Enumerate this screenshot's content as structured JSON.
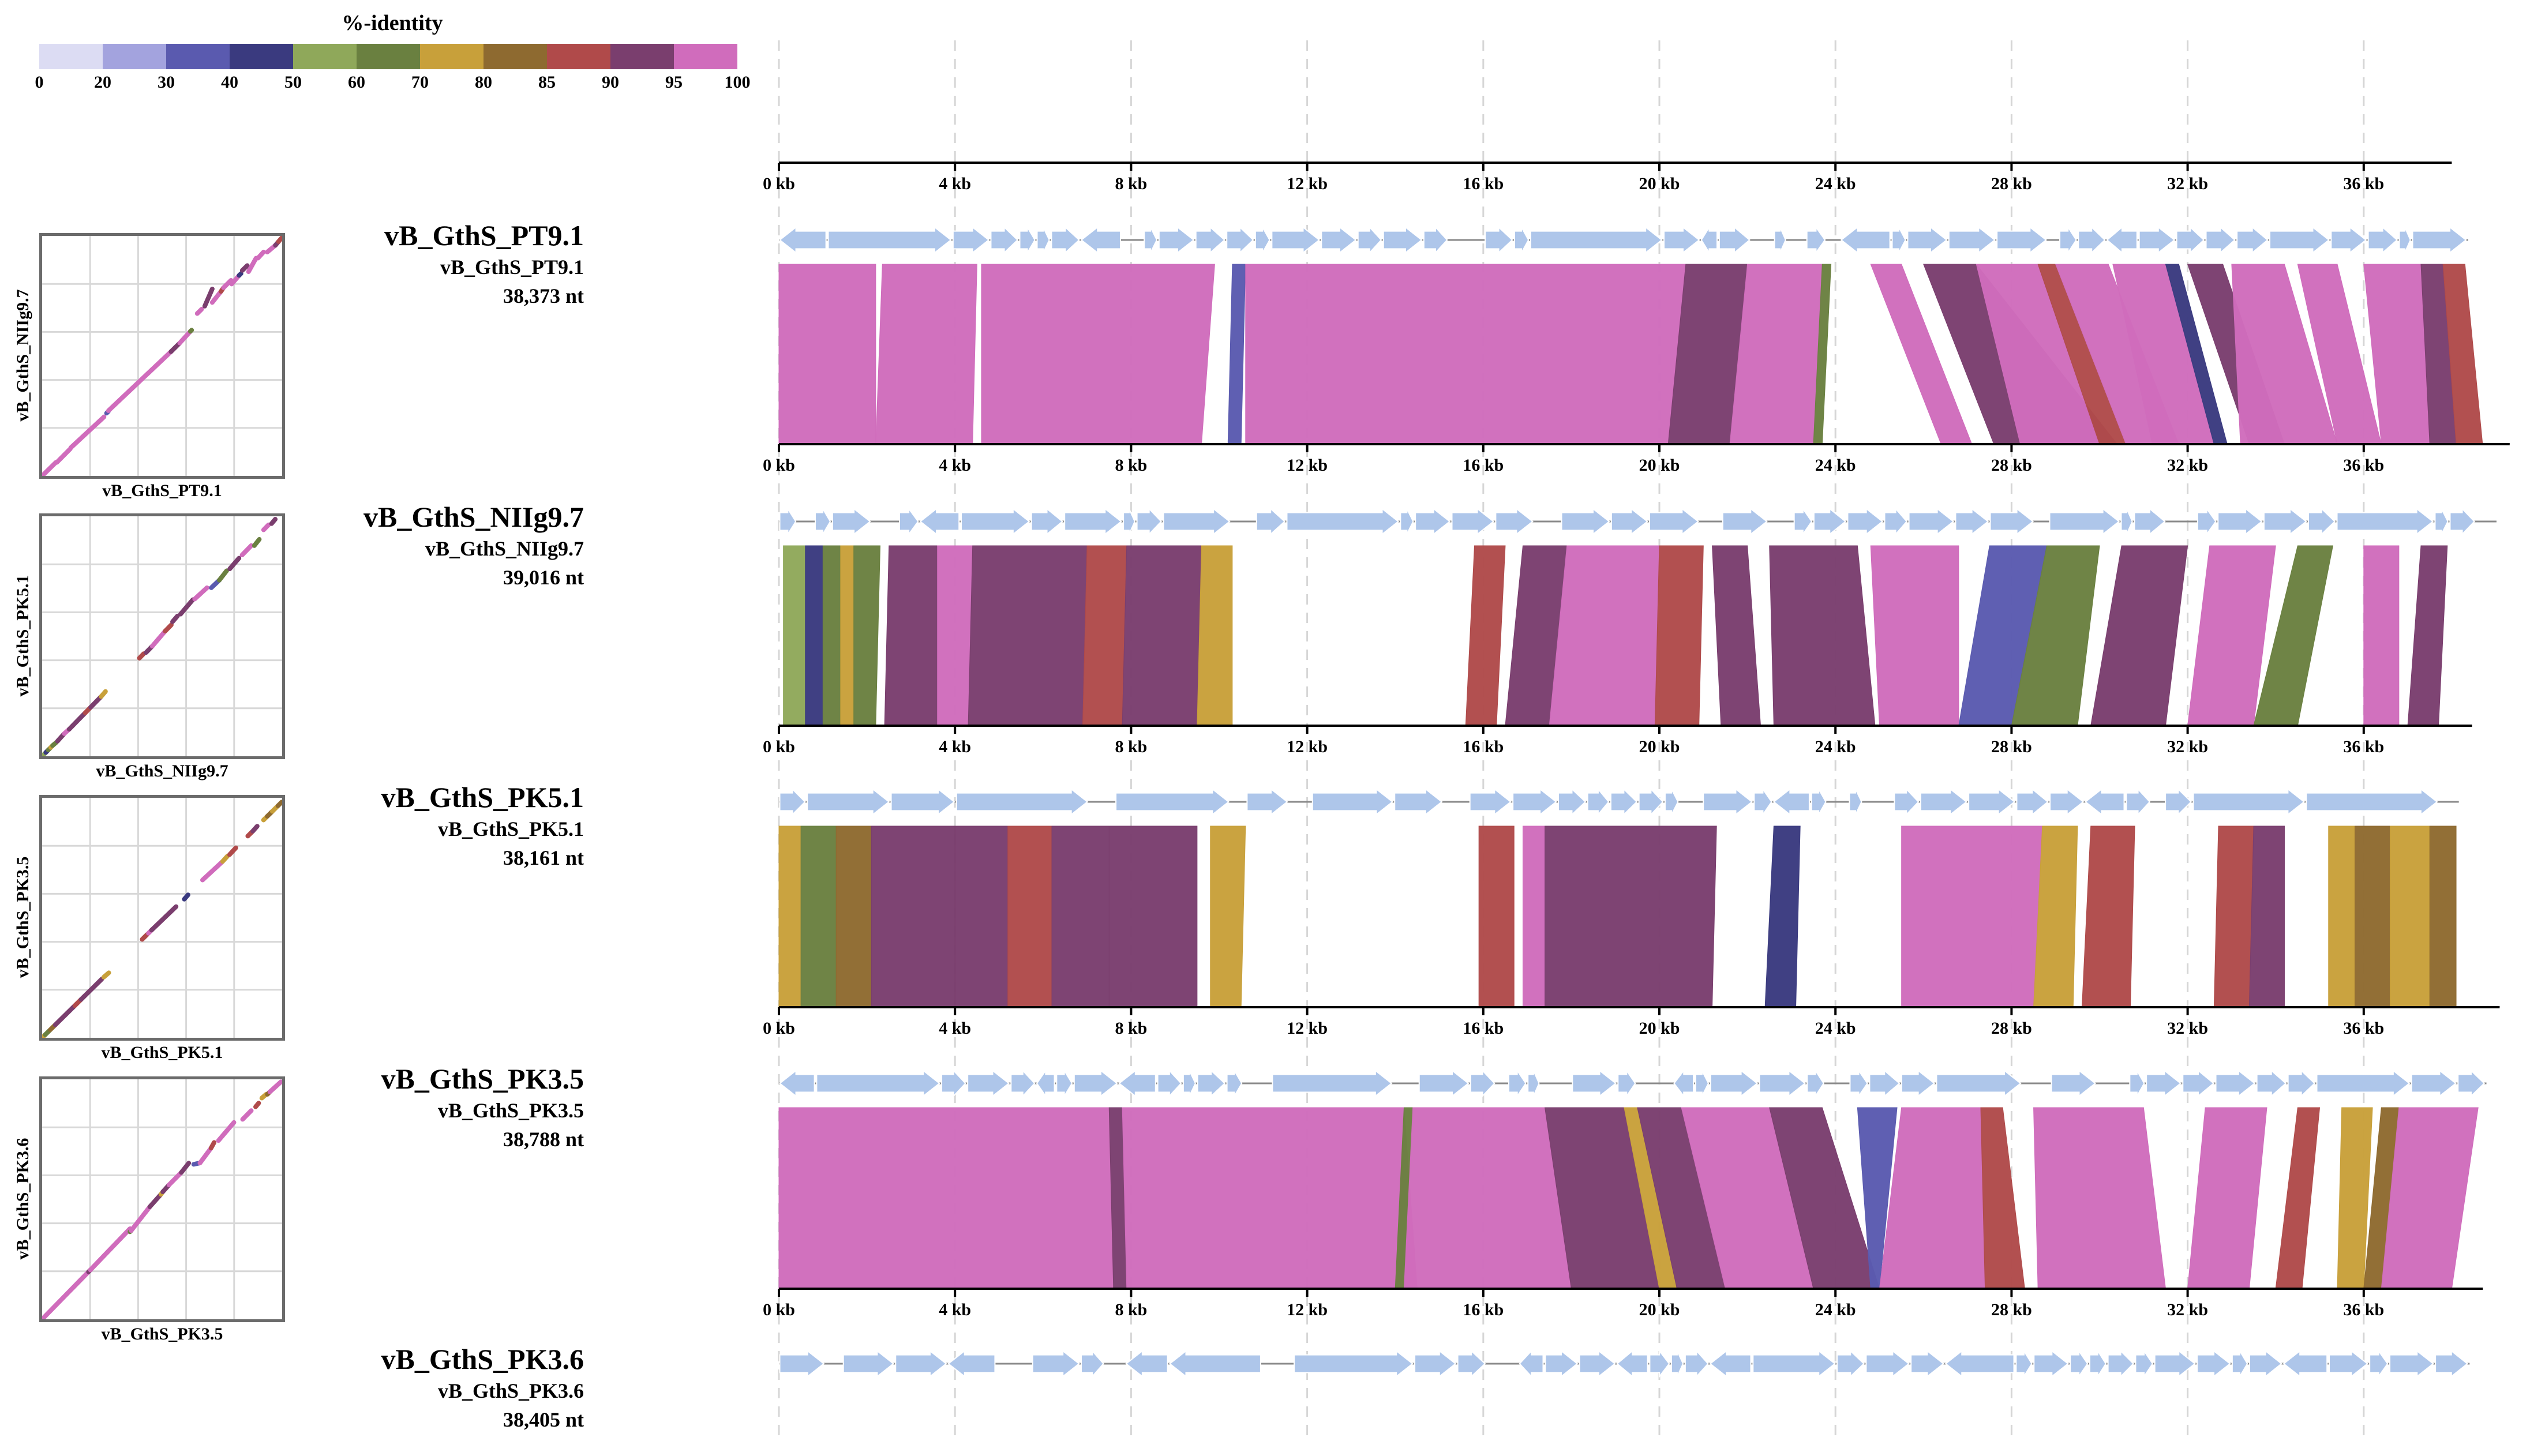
{
  "legend": {
    "title": "%-identity",
    "ticks": [
      "0",
      "20",
      "30",
      "40",
      "50",
      "60",
      "70",
      "80",
      "85",
      "90",
      "95",
      "100"
    ],
    "colors": [
      "#dcdcf3",
      "#a3a3de",
      "#5a5aaf",
      "#3a3a7f",
      "#8fa85a",
      "#6a8040",
      "#c8a03a",
      "#8e6a30",
      "#b04a4a",
      "#7a3e6e",
      "#d06cbc"
    ]
  },
  "axis": {
    "labels": [
      "0 kb",
      "4 kb",
      "8 kb",
      "12 kb",
      "16 kb",
      "20 kb",
      "24 kb",
      "28 kb",
      "32 kb",
      "36 kb"
    ],
    "max_kb": 38.373
  },
  "genomes": [
    {
      "name": "vB_GthS_PT9.1",
      "sub": "vB_GthS_PT9.1",
      "length": "38,373 nt",
      "length_kb": 38.373
    },
    {
      "name": "vB_GthS_NIIg9.7",
      "sub": "vB_GthS_NIIg9.7",
      "length": "39,016 nt",
      "length_kb": 39.016
    },
    {
      "name": "vB_GthS_PK5.1",
      "sub": "vB_GthS_PK5.1",
      "length": "38,161 nt",
      "length_kb": 38.161
    },
    {
      "name": "vB_GthS_PK3.5",
      "sub": "vB_GthS_PK3.5",
      "length": "38,788 nt",
      "length_kb": 38.788
    },
    {
      "name": "vB_GthS_PK3.6",
      "sub": "vB_GthS_PK3.6",
      "length": "38,405 nt",
      "length_kb": 38.405
    }
  ],
  "dotplots": [
    {
      "xlabel": "vB_GthS_PT9.1",
      "ylabel": "vB_GthS_NIIg9.7"
    },
    {
      "xlabel": "vB_GthS_NIIg9.7",
      "ylabel": "vB_GthS_PK5.1"
    },
    {
      "xlabel": "vB_GthS_PK5.1",
      "ylabel": "vB_GthS_PK3.5"
    },
    {
      "xlabel": "vB_GthS_PK3.5",
      "ylabel": "vB_GthS_PK3.6"
    }
  ],
  "gene_color": "#aec6ea",
  "comparisons": [
    [
      {
        "t": [
          0,
          2.2
        ],
        "b": [
          0,
          2.2
        ],
        "c": 10
      },
      {
        "t": [
          2.35,
          4.5
        ],
        "b": [
          2.2,
          4.4
        ],
        "c": 10
      },
      {
        "t": [
          4.6,
          9.9
        ],
        "b": [
          4.6,
          9.6
        ],
        "c": 10
      },
      {
        "t": [
          10.3,
          10.6
        ],
        "b": [
          10.2,
          10.5
        ],
        "c": 2
      },
      {
        "t": [
          10.6,
          20.6
        ],
        "b": [
          10.6,
          20.2
        ],
        "c": 10
      },
      {
        "t": [
          20.6,
          22.0
        ],
        "b": [
          20.2,
          21.6
        ],
        "c": 9
      },
      {
        "t": [
          22.0,
          23.7
        ],
        "b": [
          21.6,
          23.5
        ],
        "c": 10
      },
      {
        "t": [
          23.7,
          23.9
        ],
        "b": [
          23.5,
          23.7
        ],
        "c": 5
      },
      {
        "t": [
          24.8,
          25.5
        ],
        "b": [
          26.4,
          27.1
        ],
        "c": 10
      },
      {
        "t": [
          26.0,
          27.2
        ],
        "b": [
          27.6,
          30.4
        ],
        "c": 9
      },
      {
        "t": [
          27.2,
          28.6
        ],
        "b": [
          28.2,
          30.0
        ],
        "c": 10
      },
      {
        "t": [
          28.6,
          29.0
        ],
        "b": [
          30.0,
          30.6
        ],
        "c": 8
      },
      {
        "t": [
          29.0,
          30.2
        ],
        "b": [
          30.6,
          31.8
        ],
        "c": 10
      },
      {
        "t": [
          30.3,
          31.5
        ],
        "b": [
          31.2,
          32.6
        ],
        "c": 10
      },
      {
        "t": [
          31.5,
          31.8
        ],
        "b": [
          32.6,
          32.9
        ],
        "c": 3
      },
      {
        "t": [
          32.0,
          32.8
        ],
        "b": [
          33.4,
          34.2
        ],
        "c": 9
      },
      {
        "t": [
          33.0,
          34.2
        ],
        "b": [
          33.2,
          35.4
        ],
        "c": 10
      },
      {
        "t": [
          34.5,
          35.4
        ],
        "b": [
          35.4,
          36.4
        ],
        "c": 10
      },
      {
        "t": [
          36.0,
          37.3
        ],
        "b": [
          36.4,
          37.5
        ],
        "c": 10
      },
      {
        "t": [
          37.3,
          37.8
        ],
        "b": [
          37.5,
          38.1
        ],
        "c": 9
      },
      {
        "t": [
          37.8,
          38.3
        ],
        "b": [
          38.1,
          38.7
        ],
        "c": 8
      }
    ],
    [
      {
        "t": [
          0.1,
          0.6
        ],
        "b": [
          0.1,
          0.6
        ],
        "c": 4
      },
      {
        "t": [
          0.6,
          1.0
        ],
        "b": [
          0.6,
          1.0
        ],
        "c": 3
      },
      {
        "t": [
          1.0,
          1.4
        ],
        "b": [
          1.0,
          1.4
        ],
        "c": 5
      },
      {
        "t": [
          1.4,
          1.7
        ],
        "b": [
          1.4,
          1.7
        ],
        "c": 6
      },
      {
        "t": [
          1.7,
          2.3
        ],
        "b": [
          1.7,
          2.2
        ],
        "c": 5
      },
      {
        "t": [
          2.5,
          3.6
        ],
        "b": [
          2.4,
          3.6
        ],
        "c": 9
      },
      {
        "t": [
          3.6,
          4.4
        ],
        "b": [
          3.6,
          4.3
        ],
        "c": 10
      },
      {
        "t": [
          4.4,
          7.0
        ],
        "b": [
          4.3,
          6.9
        ],
        "c": 9
      },
      {
        "t": [
          7.0,
          7.9
        ],
        "b": [
          6.9,
          7.8
        ],
        "c": 8
      },
      {
        "t": [
          7.9,
          9.6
        ],
        "b": [
          7.8,
          9.5
        ],
        "c": 9
      },
      {
        "t": [
          9.6,
          10.3
        ],
        "b": [
          9.5,
          10.3
        ],
        "c": 6
      },
      {
        "t": [
          15.8,
          16.5
        ],
        "b": [
          15.6,
          16.3
        ],
        "c": 8
      },
      {
        "t": [
          16.9,
          17.9
        ],
        "b": [
          16.5,
          17.5
        ],
        "c": 9
      },
      {
        "t": [
          17.9,
          20.0
        ],
        "b": [
          17.5,
          19.9
        ],
        "c": 10
      },
      {
        "t": [
          20.0,
          21.0
        ],
        "b": [
          19.9,
          20.9
        ],
        "c": 8
      },
      {
        "t": [
          21.2,
          22.0
        ],
        "b": [
          21.4,
          22.3
        ],
        "c": 9
      },
      {
        "t": [
          22.5,
          24.5
        ],
        "b": [
          22.6,
          24.9
        ],
        "c": 9
      },
      {
        "t": [
          24.8,
          26.8
        ],
        "b": [
          25.0,
          26.8
        ],
        "c": 10
      },
      {
        "t": [
          27.5,
          28.8
        ],
        "b": [
          26.8,
          28.0
        ],
        "c": 2
      },
      {
        "t": [
          28.8,
          30.0
        ],
        "b": [
          28.0,
          29.5
        ],
        "c": 5
      },
      {
        "t": [
          30.5,
          32.0
        ],
        "b": [
          29.8,
          31.5
        ],
        "c": 9
      },
      {
        "t": [
          32.5,
          34.0
        ],
        "b": [
          32.0,
          33.5
        ],
        "c": 10
      },
      {
        "t": [
          34.5,
          35.3
        ],
        "b": [
          33.5,
          34.5
        ],
        "c": 5
      },
      {
        "t": [
          36.0,
          36.8
        ],
        "b": [
          36.0,
          36.8
        ],
        "c": 10
      },
      {
        "t": [
          37.3,
          37.9
        ],
        "b": [
          37.0,
          37.7
        ],
        "c": 9
      }
    ],
    [
      {
        "t": [
          0.0,
          0.5
        ],
        "b": [
          0.0,
          0.5
        ],
        "c": 6
      },
      {
        "t": [
          0.5,
          1.3
        ],
        "b": [
          0.5,
          1.3
        ],
        "c": 5
      },
      {
        "t": [
          1.3,
          2.1
        ],
        "b": [
          1.3,
          2.1
        ],
        "c": 7
      },
      {
        "t": [
          2.1,
          4.0
        ],
        "b": [
          2.1,
          4.0
        ],
        "c": 9
      },
      {
        "t": [
          4.0,
          5.2
        ],
        "b": [
          4.0,
          5.2
        ],
        "c": 9
      },
      {
        "t": [
          5.2,
          6.2
        ],
        "b": [
          5.2,
          6.2
        ],
        "c": 8
      },
      {
        "t": [
          6.2,
          7.5
        ],
        "b": [
          6.2,
          7.5
        ],
        "c": 9
      },
      {
        "t": [
          7.5,
          9.5
        ],
        "b": [
          7.5,
          9.5
        ],
        "c": 9
      },
      {
        "t": [
          9.8,
          10.6
        ],
        "b": [
          9.8,
          10.5
        ],
        "c": 6
      },
      {
        "t": [
          15.9,
          16.7
        ],
        "b": [
          15.9,
          16.7
        ],
        "c": 8
      },
      {
        "t": [
          16.9,
          17.4
        ],
        "b": [
          16.9,
          17.4
        ],
        "c": 10
      },
      {
        "t": [
          17.4,
          21.3
        ],
        "b": [
          17.4,
          21.2
        ],
        "c": 9
      },
      {
        "t": [
          22.6,
          23.2
        ],
        "b": [
          22.4,
          23.1
        ],
        "c": 3
      },
      {
        "t": [
          25.5,
          28.7
        ],
        "b": [
          25.5,
          28.5
        ],
        "c": 10
      },
      {
        "t": [
          28.7,
          29.5
        ],
        "b": [
          28.5,
          29.4
        ],
        "c": 6
      },
      {
        "t": [
          29.8,
          30.8
        ],
        "b": [
          29.6,
          30.7
        ],
        "c": 8
      },
      {
        "t": [
          32.7,
          33.5
        ],
        "b": [
          32.6,
          33.4
        ],
        "c": 8
      },
      {
        "t": [
          33.5,
          34.2
        ],
        "b": [
          33.4,
          34.2
        ],
        "c": 9
      },
      {
        "t": [
          35.2,
          35.8
        ],
        "b": [
          35.2,
          35.8
        ],
        "c": 6
      },
      {
        "t": [
          35.8,
          36.6
        ],
        "b": [
          35.8,
          36.6
        ],
        "c": 7
      },
      {
        "t": [
          36.6,
          37.5
        ],
        "b": [
          36.6,
          37.5
        ],
        "c": 6
      },
      {
        "t": [
          37.5,
          38.1
        ],
        "b": [
          37.5,
          38.1
        ],
        "c": 7
      }
    ],
    [
      {
        "t": [
          0.0,
          7.5
        ],
        "b": [
          0.0,
          7.6
        ],
        "c": 10
      },
      {
        "t": [
          7.5,
          7.8
        ],
        "b": [
          7.6,
          7.9
        ],
        "c": 9
      },
      {
        "t": [
          7.8,
          14.2
        ],
        "b": [
          7.9,
          14.5
        ],
        "c": 10
      },
      {
        "t": [
          14.2,
          14.4
        ],
        "b": [
          14.0,
          14.2
        ],
        "c": 5
      },
      {
        "t": [
          14.4,
          17.4
        ],
        "b": [
          14.2,
          18.0
        ],
        "c": 10
      },
      {
        "t": [
          17.4,
          19.2
        ],
        "b": [
          18.0,
          20.0
        ],
        "c": 9
      },
      {
        "t": [
          19.2,
          19.5
        ],
        "b": [
          20.0,
          20.4
        ],
        "c": 6
      },
      {
        "t": [
          19.5,
          20.5
        ],
        "b": [
          20.4,
          21.5
        ],
        "c": 9
      },
      {
        "t": [
          20.5,
          22.5
        ],
        "b": [
          21.5,
          23.5
        ],
        "c": 10
      },
      {
        "t": [
          22.5,
          23.7
        ],
        "b": [
          23.5,
          25.0
        ],
        "c": 9
      },
      {
        "t": [
          24.5,
          25.4
        ],
        "b": [
          24.8,
          25.0
        ],
        "c": 2
      },
      {
        "t": [
          25.5,
          27.3
        ],
        "b": [
          25.0,
          27.4
        ],
        "c": 10
      },
      {
        "t": [
          27.3,
          27.8
        ],
        "b": [
          27.4,
          28.3
        ],
        "c": 8
      },
      {
        "t": [
          28.5,
          31.0
        ],
        "b": [
          28.6,
          31.5
        ],
        "c": 10
      },
      {
        "t": [
          32.4,
          33.8
        ],
        "b": [
          32.0,
          33.4
        ],
        "c": 10
      },
      {
        "t": [
          34.5,
          35.0
        ],
        "b": [
          34.0,
          34.6
        ],
        "c": 8
      },
      {
        "t": [
          35.5,
          36.2
        ],
        "b": [
          35.4,
          36.0
        ],
        "c": 6
      },
      {
        "t": [
          36.4,
          36.8
        ],
        "b": [
          36.0,
          36.4
        ],
        "c": 7
      },
      {
        "t": [
          36.8,
          38.6
        ],
        "b": [
          36.4,
          38.0
        ],
        "c": 10
      }
    ]
  ]
}
